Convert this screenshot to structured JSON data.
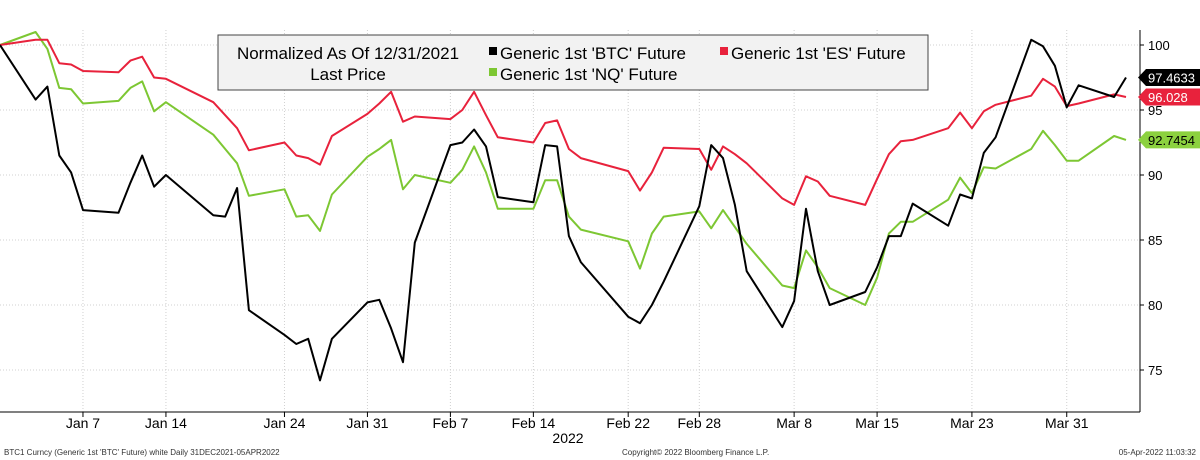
{
  "chart_data": {
    "type": "line",
    "legend": {
      "header_line1": "Normalized As Of 12/31/2021",
      "header_line2": "Last Price",
      "placement": "top-center"
    },
    "xlabel": "2022",
    "y_ticks": [
      100,
      95,
      90,
      85,
      80,
      75
    ],
    "ylim": [
      72,
      102
    ],
    "x_ticks": [
      {
        "label": "Jan 7",
        "date": "2022-01-07"
      },
      {
        "label": "Jan 14",
        "date": "2022-01-14"
      },
      {
        "label": "Jan 24",
        "date": "2022-01-24"
      },
      {
        "label": "Jan 31",
        "date": "2022-01-31"
      },
      {
        "label": "Feb 7",
        "date": "2022-02-07"
      },
      {
        "label": "Feb 14",
        "date": "2022-02-14"
      },
      {
        "label": "Feb 22",
        "date": "2022-02-22"
      },
      {
        "label": "Feb 28",
        "date": "2022-02-28"
      },
      {
        "label": "Mar 8",
        "date": "2022-03-08"
      },
      {
        "label": "Mar 15",
        "date": "2022-03-15"
      },
      {
        "label": "Mar 23",
        "date": "2022-03-23"
      },
      {
        "label": "Mar 31",
        "date": "2022-03-31"
      }
    ],
    "x": [
      "2021-12-31",
      "2022-01-03",
      "2022-01-04",
      "2022-01-05",
      "2022-01-06",
      "2022-01-07",
      "2022-01-10",
      "2022-01-11",
      "2022-01-12",
      "2022-01-13",
      "2022-01-14",
      "2022-01-18",
      "2022-01-19",
      "2022-01-20",
      "2022-01-21",
      "2022-01-24",
      "2022-01-25",
      "2022-01-26",
      "2022-01-27",
      "2022-01-28",
      "2022-01-31",
      "2022-02-01",
      "2022-02-02",
      "2022-02-03",
      "2022-02-04",
      "2022-02-07",
      "2022-02-08",
      "2022-02-09",
      "2022-02-10",
      "2022-02-11",
      "2022-02-14",
      "2022-02-15",
      "2022-02-16",
      "2022-02-17",
      "2022-02-18",
      "2022-02-22",
      "2022-02-23",
      "2022-02-24",
      "2022-02-25",
      "2022-02-28",
      "2022-03-01",
      "2022-03-02",
      "2022-03-03",
      "2022-03-04",
      "2022-03-07",
      "2022-03-08",
      "2022-03-09",
      "2022-03-10",
      "2022-03-11",
      "2022-03-14",
      "2022-03-15",
      "2022-03-16",
      "2022-03-17",
      "2022-03-18",
      "2022-03-21",
      "2022-03-22",
      "2022-03-23",
      "2022-03-24",
      "2022-03-25",
      "2022-03-28",
      "2022-03-29",
      "2022-03-30",
      "2022-03-31",
      "2022-04-01",
      "2022-04-04",
      "2022-04-05"
    ],
    "series": [
      {
        "name": "Generic 1st 'BTC' Future",
        "color": "#000000",
        "last_label": "97.4633",
        "label_bg": "#000000",
        "label_fg": "#ffffff",
        "values": [
          100,
          95.8,
          96.8,
          91.5,
          90.2,
          87.3,
          87.1,
          89.4,
          91.5,
          89.1,
          90,
          86.9,
          86.8,
          89,
          79.6,
          77.7,
          77,
          77.4,
          74.2,
          77.4,
          80.2,
          80.4,
          78.2,
          75.6,
          84.8,
          92.3,
          92.5,
          93.5,
          92.2,
          88.3,
          87.9,
          92.3,
          92.2,
          85.3,
          83.3,
          79.1,
          78.6,
          80,
          81.8,
          87.6,
          92.3,
          91.3,
          87.7,
          82.6,
          78.3,
          80.3,
          87.4,
          82.6,
          80,
          81,
          82.9,
          85.3,
          85.3,
          87.8,
          86.1,
          88.5,
          88.2,
          91.7,
          92.9,
          100.4,
          99.9,
          98.4,
          95.2,
          96.9,
          96,
          97.5
        ]
      },
      {
        "name": "Generic 1st 'ES' Future",
        "color": "#e8223c",
        "last_label": "96.028",
        "label_bg": "#e8223c",
        "label_fg": "#ffffff",
        "values": [
          100,
          100.4,
          100.4,
          98.6,
          98.5,
          98,
          97.9,
          98.8,
          99.1,
          97.5,
          97.4,
          95.6,
          94.6,
          93.6,
          91.9,
          92.5,
          91.5,
          91.3,
          90.8,
          93,
          94.7,
          95.5,
          96.4,
          94.1,
          94.5,
          94.3,
          95,
          96.4,
          94.6,
          92.9,
          92.5,
          94,
          94.2,
          92,
          91.3,
          90.3,
          88.8,
          90.2,
          92.1,
          92,
          90.4,
          92.2,
          91.6,
          90.9,
          88.2,
          87.7,
          89.9,
          89.5,
          88.4,
          87.7,
          89.7,
          91.6,
          92.6,
          92.7,
          93.6,
          94.8,
          93.6,
          94.9,
          95.4,
          96.1,
          97.4,
          96.8,
          95.3,
          95.5,
          96.2,
          96.0
        ]
      },
      {
        "name": "Generic 1st 'NQ' Future",
        "color": "#7dc733",
        "last_label": "92.7454",
        "label_bg": "#8cd13f",
        "label_fg": "#000000",
        "values": [
          100,
          101,
          99.7,
          96.7,
          96.6,
          95.5,
          95.7,
          96.7,
          97.2,
          94.9,
          95.6,
          93.1,
          92,
          90.9,
          88.4,
          88.9,
          86.8,
          86.9,
          85.7,
          88.5,
          91.4,
          92,
          92.7,
          88.9,
          90,
          89.4,
          90.4,
          92.2,
          90.2,
          87.4,
          87.4,
          89.6,
          89.6,
          86.8,
          85.8,
          84.9,
          82.8,
          85.5,
          86.8,
          87.2,
          85.9,
          87.3,
          86,
          84.7,
          81.5,
          81.3,
          84.2,
          82.9,
          81.3,
          80,
          82.1,
          85.5,
          86.4,
          86.4,
          88.1,
          89.8,
          88.6,
          90.6,
          90.5,
          92,
          93.4,
          92.3,
          91.1,
          91.1,
          93,
          92.7
        ]
      }
    ]
  },
  "footer": {
    "left": "BTC1 Curncy (Generic 1st 'BTC' Future) white  Daily 31DEC2021-05APR2022",
    "center": "Copyright© 2022 Bloomberg Finance L.P.",
    "right": "05-Apr-2022 11:03:32"
  },
  "colors": {
    "grid": "#d0d0d0",
    "axis": "#000000",
    "legend_bg": "#f2f2f2"
  }
}
